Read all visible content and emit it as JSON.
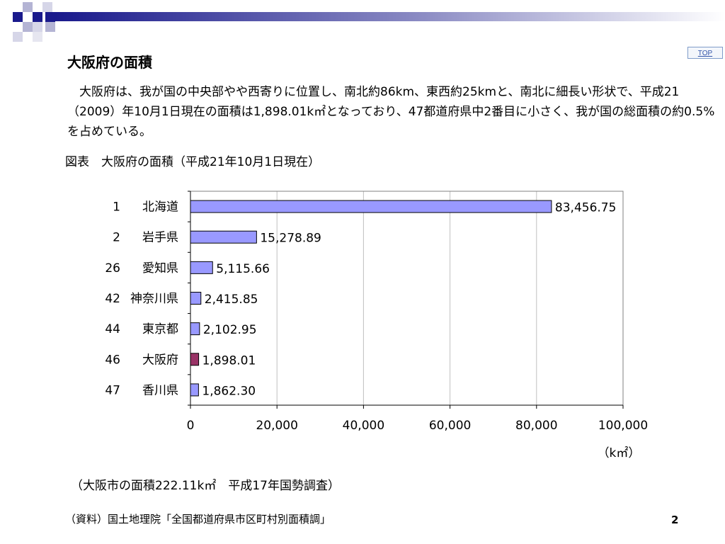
{
  "top_button": "TOP",
  "title": "大阪府の面積",
  "body_text": "　大阪府は、我が国の中央部やや西寄りに位置し、南北約86km、東西約25kmと、南北に細長い形状で、平成21（2009）年10月1日現在の面積は1,898.01k㎡となっており、47都道府県中2番目に小さく、我が国の総面積の約0.5%を占めている。",
  "figure_caption": "図表　大阪府の面積（平成21年10月1日現在）",
  "note": "（大阪市の面積222.11k㎡　平成17年国勢調査）",
  "source": "（資料）国土地理院「全国都道府県市区町村別面積調」",
  "page_number": "2",
  "colors": {
    "bar_default": "#9999ff",
    "bar_highlight": "#993366",
    "header_dark": "#1a1a8c"
  },
  "chart_data": {
    "type": "bar",
    "orientation": "horizontal",
    "categories": [
      "1　北海道",
      "2　岩手県",
      "26　愛知県",
      "42　神奈川県",
      "44　東京都",
      "46　大阪府",
      "47　香川県"
    ],
    "values": [
      83456.75,
      15278.89,
      5115.66,
      2415.85,
      2102.95,
      1898.01,
      1862.3
    ],
    "value_labels": [
      "83,456.75",
      "15,278.89",
      "5,115.66",
      "2,415.85",
      "2,102.95",
      "1,898.01",
      "1,862.30"
    ],
    "highlight_index": 5,
    "xlim": [
      0,
      100000
    ],
    "xticks": [
      0,
      20000,
      40000,
      60000,
      80000,
      100000
    ],
    "xtick_labels": [
      "0",
      "20,000",
      "40,000",
      "60,000",
      "80,000",
      "100,000"
    ],
    "xlabel": "（k㎡）",
    "grid": "vertical"
  }
}
